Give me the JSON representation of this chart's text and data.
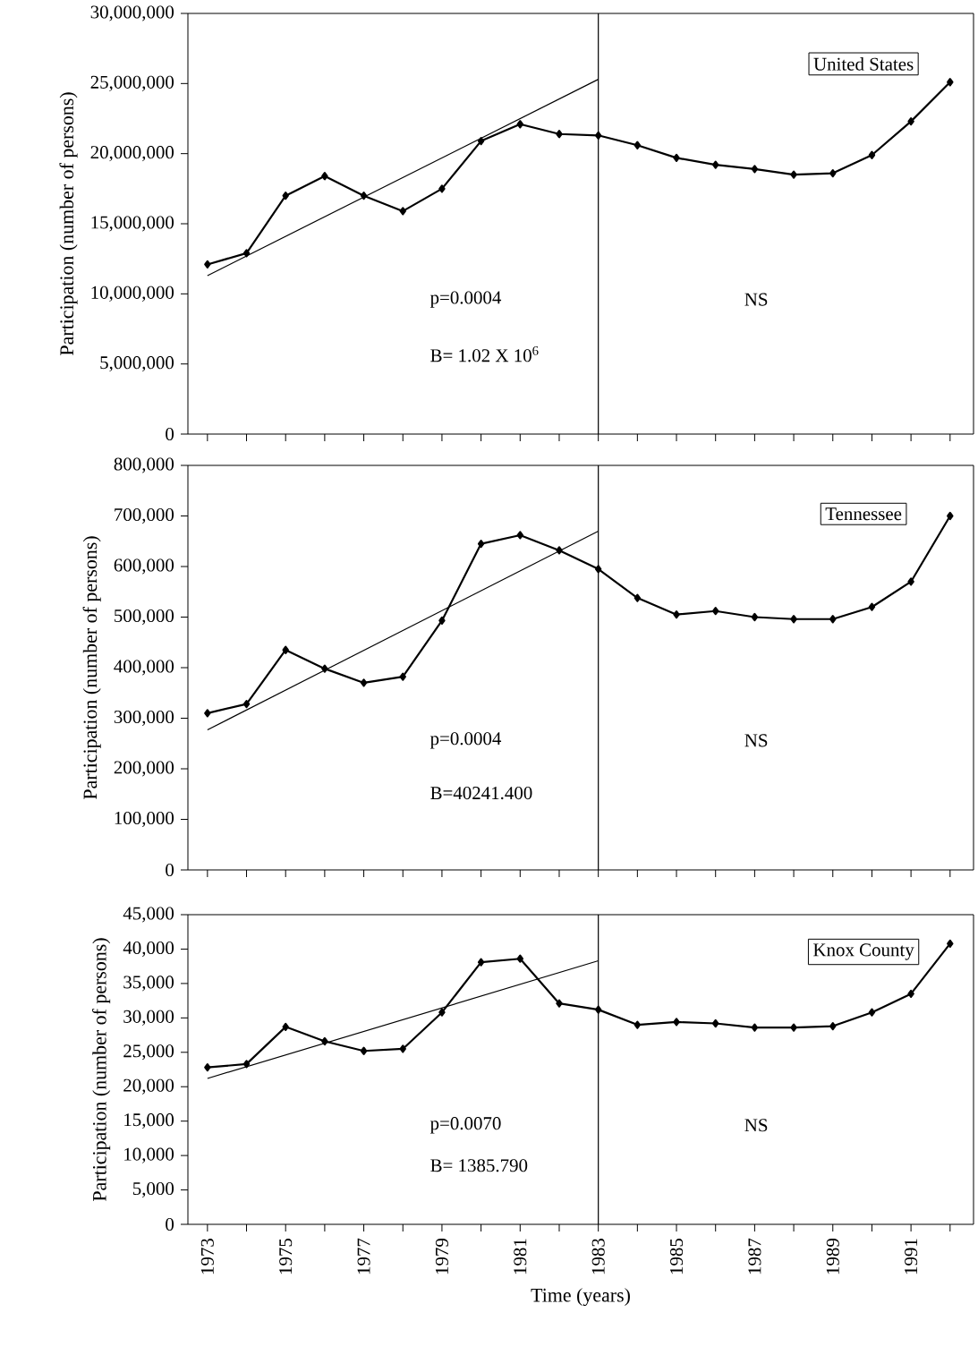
{
  "chart_data": [
    {
      "type": "line",
      "ylabel": "Participation (number of persons)",
      "tick_labels": "y",
      "xlim": [
        1972.5,
        1992.6
      ],
      "ylim": [
        0,
        30000000
      ],
      "xticks": [
        1973,
        {
          "value": 1974,
          "label": null
        },
        1975,
        {
          "value": 1976,
          "label": null
        },
        1977,
        {
          "value": 1978,
          "label": null
        },
        1979,
        {
          "value": 1980,
          "label": null
        },
        1981,
        {
          "value": 1982,
          "label": null
        },
        1983,
        {
          "value": 1984,
          "label": null
        },
        1985,
        {
          "value": 1986,
          "label": null
        },
        1987,
        {
          "value": 1988,
          "label": null
        },
        1989,
        {
          "value": 1990,
          "label": null
        },
        1991,
        {
          "value": 1992,
          "label": null
        }
      ],
      "yticks": [
        0,
        {
          "value": 5000000,
          "label": "5,000,000"
        },
        {
          "value": 10000000,
          "label": "10,000,000"
        },
        {
          "value": 15000000,
          "label": "15,000,000"
        },
        {
          "value": 20000000,
          "label": "20,000,000"
        },
        {
          "value": 25000000,
          "label": "25,000,000"
        },
        {
          "value": 30000000,
          "label": "30,000,000"
        }
      ],
      "series": [
        {
          "color": "#000000",
          "marker": "diamond",
          "x": [
            1973,
            1974,
            1975,
            1976,
            1977,
            1978,
            1979,
            1980,
            1981,
            1982,
            1983,
            1984,
            1985,
            1986,
            1987,
            1988,
            1989,
            1990,
            1991,
            1992
          ],
          "values": [
            12100000,
            12900000,
            17000000,
            18400000,
            17000000,
            15900000,
            17500000,
            20900000,
            22100000,
            21400000,
            21300000,
            20600000,
            19700000,
            19200000,
            18900000,
            18500000,
            18600000,
            19900000,
            22300000,
            25100000
          ]
        },
        {
          "type": "line",
          "color": "#000000",
          "marker": "none",
          "x": [
            1973,
            1983
          ],
          "values": [
            11300000,
            25300000
          ]
        }
      ],
      "ref_lines": [
        {
          "axis": "x",
          "value": 1983,
          "color": "#000000"
        }
      ],
      "annotations": [
        "United States",
        "p=0.0004",
        "B= 1.02 X 10$^{6}$",
        "NS"
      ]
    },
    {
      "type": "line",
      "ylabel": "Participation (number of persons)",
      "tick_labels": "y",
      "xlim": [
        1972.5,
        1992.6
      ],
      "ylim": [
        0,
        800000
      ],
      "xticks": [
        1973,
        {
          "value": 1974,
          "label": null
        },
        1975,
        {
          "value": 1976,
          "label": null
        },
        1977,
        {
          "value": 1978,
          "label": null
        },
        1979,
        {
          "value": 1980,
          "label": null
        },
        1981,
        {
          "value": 1982,
          "label": null
        },
        1983,
        {
          "value": 1984,
          "label": null
        },
        1985,
        {
          "value": 1986,
          "label": null
        },
        1987,
        {
          "value": 1988,
          "label": null
        },
        1989,
        {
          "value": 1990,
          "label": null
        },
        1991,
        {
          "value": 1992,
          "label": null
        }
      ],
      "yticks": [
        0,
        {
          "value": 100000,
          "label": "100,000"
        },
        {
          "value": 200000,
          "label": "200,000"
        },
        {
          "value": 300000,
          "label": "300,000"
        },
        {
          "value": 400000,
          "label": "400,000"
        },
        {
          "value": 500000,
          "label": "500,000"
        },
        {
          "value": 600000,
          "label": "600,000"
        },
        {
          "value": 700000,
          "label": "700,000"
        },
        {
          "value": 800000,
          "label": "800,000"
        }
      ],
      "series": [
        {
          "color": "#000000",
          "marker": "diamond",
          "x": [
            1973,
            1974,
            1975,
            1976,
            1977,
            1978,
            1979,
            1980,
            1981,
            1982,
            1983,
            1984,
            1985,
            1986,
            1987,
            1988,
            1989,
            1990,
            1991,
            1992
          ],
          "values": [
            310000,
            328000,
            435000,
            398000,
            370000,
            382000,
            493000,
            645000,
            662000,
            632000,
            595000,
            538000,
            505000,
            512000,
            500000,
            496000,
            496000,
            520000,
            570000,
            700000
          ]
        },
        {
          "type": "line",
          "color": "#000000",
          "marker": "none",
          "x": [
            1973,
            1983
          ],
          "values": [
            277000,
            670000
          ]
        }
      ],
      "ref_lines": [
        {
          "axis": "x",
          "value": 1983,
          "color": "#000000"
        }
      ],
      "annotations": [
        "Tennessee",
        "p=0.0004",
        "B=40241.400",
        "NS"
      ]
    },
    {
      "type": "line",
      "ylabel": "Participation (number of persons)",
      "xlabel": "Time (years)",
      "xlim": [
        1972.5,
        1992.6
      ],
      "ylim": [
        0,
        45000
      ],
      "xticks": [
        1973,
        {
          "value": 1974,
          "label": null
        },
        1975,
        {
          "value": 1976,
          "label": null
        },
        1977,
        {
          "value": 1978,
          "label": null
        },
        1979,
        {
          "value": 1980,
          "label": null
        },
        1981,
        {
          "value": 1982,
          "label": null
        },
        1983,
        {
          "value": 1984,
          "label": null
        },
        1985,
        {
          "value": 1986,
          "label": null
        },
        1987,
        {
          "value": 1988,
          "label": null
        },
        1989,
        {
          "value": 1990,
          "label": null
        },
        1991,
        {
          "value": 1992,
          "label": null
        }
      ],
      "yticks": [
        0,
        {
          "value": 5000,
          "label": "5,000"
        },
        {
          "value": 10000,
          "label": "10,000"
        },
        {
          "value": 15000,
          "label": "15,000"
        },
        {
          "value": 20000,
          "label": "20,000"
        },
        {
          "value": 25000,
          "label": "25,000"
        },
        {
          "value": 30000,
          "label": "30,000"
        },
        {
          "value": 35000,
          "label": "35,000"
        },
        {
          "value": 40000,
          "label": "40,000"
        },
        {
          "value": 45000,
          "label": "45,000"
        }
      ],
      "series": [
        {
          "color": "#000000",
          "marker": "diamond",
          "x": [
            1973,
            1974,
            1975,
            1976,
            1977,
            1978,
            1979,
            1980,
            1981,
            1982,
            1983,
            1984,
            1985,
            1986,
            1987,
            1988,
            1989,
            1990,
            1991,
            1992
          ],
          "values": [
            22800,
            23300,
            28700,
            26600,
            25200,
            25500,
            30800,
            38100,
            38600,
            32100,
            31200,
            29000,
            29400,
            29200,
            28600,
            28600,
            28800,
            30800,
            33500,
            40800
          ]
        },
        {
          "type": "line",
          "color": "#000000",
          "marker": "none",
          "x": [
            1973,
            1983
          ],
          "values": [
            21200,
            38300
          ]
        }
      ],
      "ref_lines": [
        {
          "axis": "x",
          "value": 1983,
          "color": "#000000"
        }
      ],
      "annotations": [
        "Knox County",
        "p=0.0070",
        "B= 1385.790",
        "NS"
      ]
    }
  ]
}
